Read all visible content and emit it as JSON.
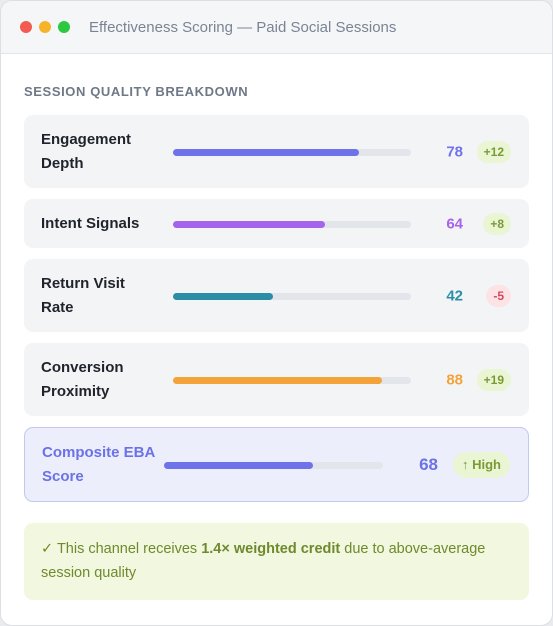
{
  "window": {
    "title": "Effectiveness Scoring — Paid Social Sessions"
  },
  "section_title": "SESSION QUALITY BREAKDOWN",
  "metrics": [
    {
      "label": "Engagement Depth",
      "score": "78",
      "value": 0.78,
      "delta": "+12",
      "trend": "positive",
      "color": "#6f73ea"
    },
    {
      "label": "Intent Signals",
      "score": "64",
      "value": 0.64,
      "delta": "+8",
      "trend": "positive",
      "color": "#a664ec"
    },
    {
      "label": "Return Visit Rate",
      "score": "42",
      "value": 0.42,
      "delta": "-5",
      "trend": "negative",
      "color": "#2b8ea6"
    },
    {
      "label": "Conversion Proximity",
      "score": "88",
      "value": 0.88,
      "delta": "+19",
      "trend": "positive",
      "color": "#f3a33a"
    }
  ],
  "composite": {
    "label": "Composite EBA Score",
    "score": "68",
    "value": 0.68,
    "badge": "High",
    "badge_icon": "arrow-up-icon",
    "color": "#6f73ea"
  },
  "note": {
    "check": "✓",
    "prefix": "This channel receives",
    "emphasis": "1.4× weighted credit",
    "suffix": "due to above-average session quality"
  }
}
